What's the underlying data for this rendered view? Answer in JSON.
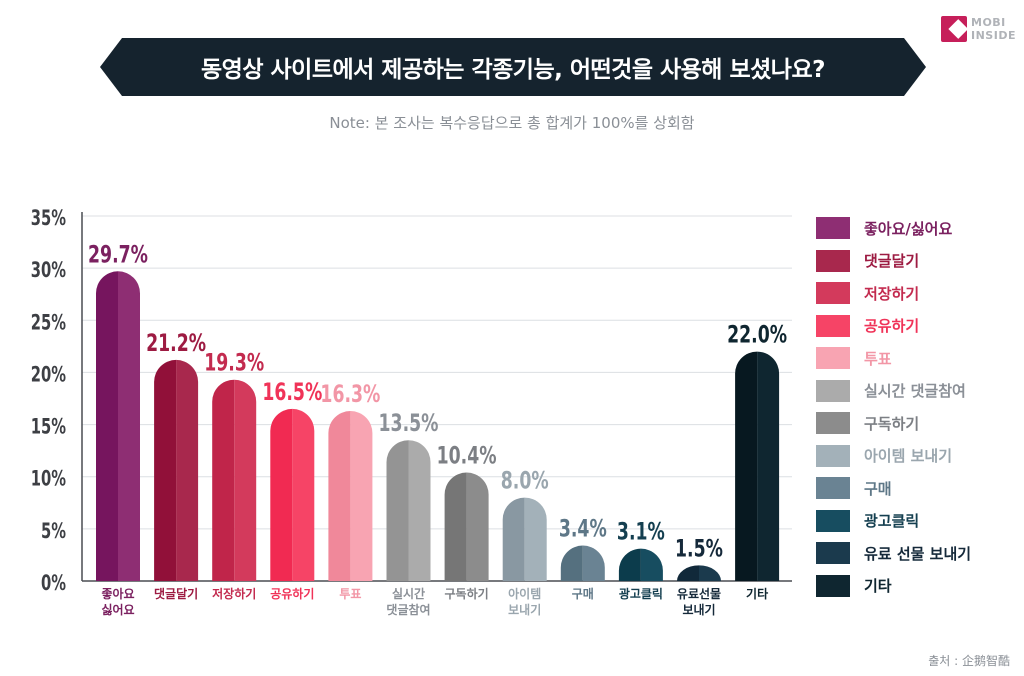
{
  "logo": {
    "line1": "MOBI",
    "line2": "INSIDE"
  },
  "title": "동영상 사이트에서 제공하는 각종기능, 어떤것을 사용해 보셨나요?",
  "note": "Note: 본 조사는 복수응답으로 총 합계가 100%를 상회함",
  "source": "출처 : 企鹅智酷",
  "chart_data": {
    "type": "bar",
    "title": "동영상 사이트에서 제공하는 각종기능, 어떤것을 사용해 보셨나요?",
    "xlabel": "",
    "ylabel": "",
    "ylim": [
      0,
      35
    ],
    "yticks": [
      "0%",
      "5%",
      "10%",
      "15%",
      "20%",
      "25%",
      "30%",
      "35%"
    ],
    "unit": "%",
    "grid": true,
    "legend_position": "right",
    "categories": [
      {
        "lines": [
          "좋아요",
          "싫어요"
        ],
        "legend": "좋아요/싫어요",
        "value": 29.7,
        "label": "29.7%",
        "color": "#8e2e73",
        "dark": "#76155e",
        "label_color": "#7b2160"
      },
      {
        "lines": [
          "댓글달기"
        ],
        "legend": "댓글달기",
        "value": 21.2,
        "label": "21.2%",
        "color": "#a8284d",
        "dark": "#911039",
        "label_color": "#9d1b42"
      },
      {
        "lines": [
          "저장하기"
        ],
        "legend": "저장하기",
        "value": 19.3,
        "label": "19.3%",
        "color": "#d33a5c",
        "dark": "#c0254a",
        "label_color": "#c32b4f"
      },
      {
        "lines": [
          "공유하기"
        ],
        "legend": "공유하기",
        "value": 16.5,
        "label": "16.5%",
        "color": "#f64466",
        "dark": "#f12a52",
        "label_color": "#f03358"
      },
      {
        "lines": [
          "투표"
        ],
        "legend": "투표",
        "value": 16.3,
        "label": "16.3%",
        "color": "#f8a4b2",
        "dark": "#f0889a",
        "label_color": "#f296a6"
      },
      {
        "lines": [
          "실시간",
          "댓글참여"
        ],
        "legend": "실시간 댓글참여",
        "value": 13.5,
        "label": "13.5%",
        "color": "#ababab",
        "dark": "#949494",
        "label_color": "#8b9097"
      },
      {
        "lines": [
          "구독하기"
        ],
        "legend": "구독하기",
        "value": 10.4,
        "label": "10.4%",
        "color": "#8c8c8c",
        "dark": "#767676",
        "label_color": "#7c7f84"
      },
      {
        "lines": [
          "아이템",
          "보내기"
        ],
        "legend": "아이템 보내기",
        "value": 8.0,
        "label": "8.0%",
        "color": "#a3b1b9",
        "dark": "#8998a2",
        "label_color": "#9aa6ae"
      },
      {
        "lines": [
          "구매"
        ],
        "legend": "구매",
        "value": 3.4,
        "label": "3.4%",
        "color": "#6a8393",
        "dark": "#55707f",
        "label_color": "#5e7787"
      },
      {
        "lines": [
          "광고클릭"
        ],
        "legend": "광고클릭",
        "value": 3.1,
        "label": "3.1%",
        "color": "#174d60",
        "dark": "#0c3c4c",
        "label_color": "#143f50"
      },
      {
        "lines": [
          "유료선물",
          "보내기"
        ],
        "legend": "유료 선물 보내기",
        "value": 1.5,
        "label": "1.5%",
        "color": "#1b3a4d",
        "dark": "#11293a",
        "label_color": "#15293a"
      },
      {
        "lines": [
          "기타"
        ],
        "legend": "기타",
        "value": 22.0,
        "label": "22.0%",
        "color": "#0f2630",
        "dark": "#071820",
        "label_color": "#0f2630"
      }
    ]
  }
}
